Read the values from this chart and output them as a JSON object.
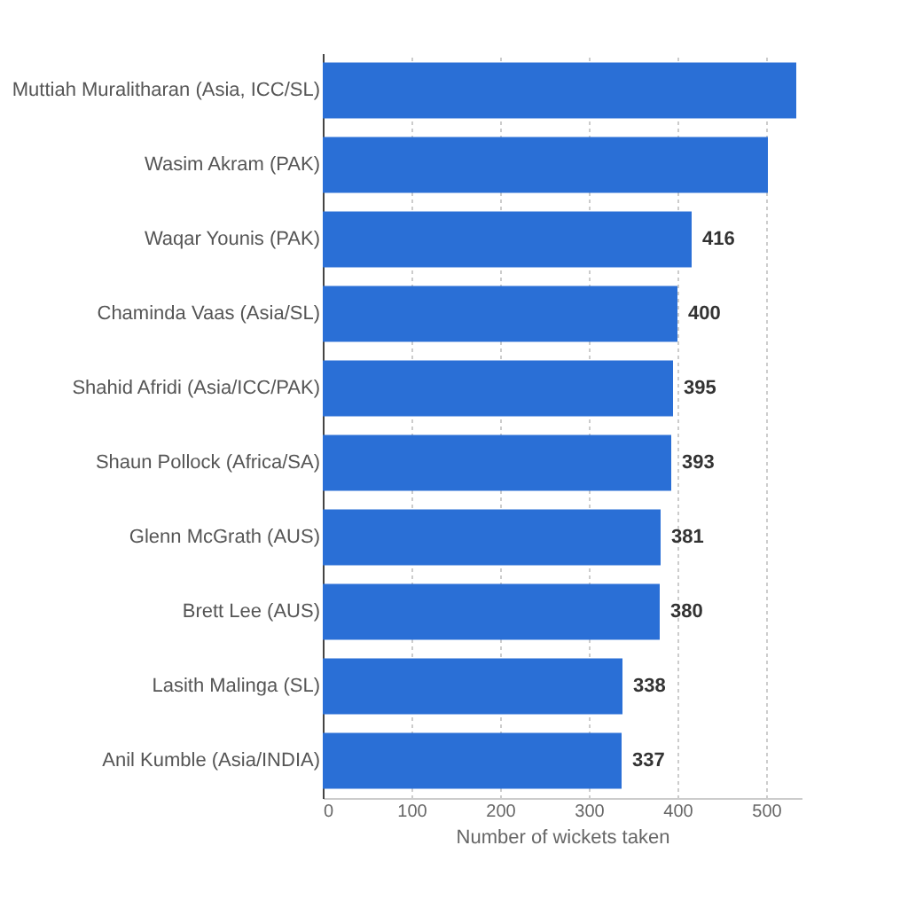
{
  "chart_data": {
    "type": "bar",
    "orientation": "horizontal",
    "xlabel": "Number of wickets taken",
    "categories": [
      "Muttiah Muralitharan (Asia, ICC/SL)",
      "Wasim Akram (PAK)",
      "Waqar Younis (PAK)",
      "Chaminda Vaas (Asia/SL)",
      "Shahid Afridi (Asia/ICC/PAK)",
      "Shaun Pollock (Africa/SA)",
      "Glenn McGrath (AUS)",
      "Brett Lee (AUS)",
      "Lasith Malinga (SL)",
      "Anil Kumble (Asia/INDIA)"
    ],
    "values": [
      534,
      502,
      416,
      400,
      395,
      393,
      381,
      380,
      338,
      337
    ],
    "value_labels": [
      null,
      null,
      "416",
      "400",
      "395",
      "393",
      "381",
      "380",
      "338",
      "337"
    ],
    "color": "#2a6fd6",
    "xlim": [
      0,
      540
    ],
    "xticks": [
      0,
      100,
      200,
      300,
      400,
      500
    ],
    "grid": "x"
  }
}
